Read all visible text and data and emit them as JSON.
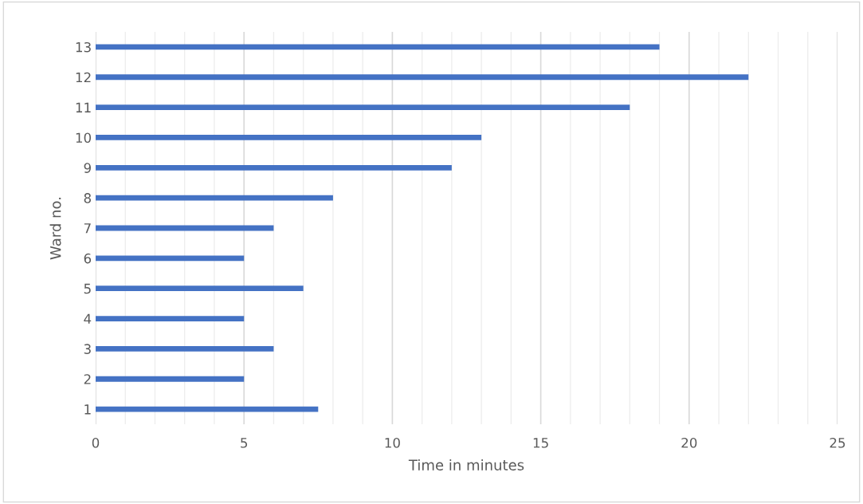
{
  "chart_data": {
    "type": "bar",
    "orientation": "horizontal",
    "xlabel": "Time in minutes",
    "ylabel": "Ward no.",
    "categories": [
      "13",
      "12",
      "11",
      "10",
      "9",
      "8",
      "7",
      "6",
      "5",
      "4",
      "3",
      "2",
      "1"
    ],
    "values": [
      19,
      22,
      18,
      13,
      12,
      8,
      6,
      5,
      7,
      5,
      6,
      5,
      7.5
    ],
    "color": "#4472c4",
    "xlim": [
      0,
      25
    ],
    "xticks": [
      0,
      {
        "value": 1,
        "label": null
      },
      {
        "value": 2,
        "label": null
      },
      {
        "value": 3,
        "label": null
      },
      {
        "value": 4,
        "label": null
      },
      5,
      {
        "value": 6,
        "label": null
      },
      {
        "value": 7,
        "label": null
      },
      {
        "value": 8,
        "label": null
      },
      {
        "value": 9,
        "label": null
      },
      10,
      {
        "value": 11,
        "label": null
      },
      {
        "value": 12,
        "label": null
      },
      {
        "value": 13,
        "label": null
      },
      {
        "value": 14,
        "label": null
      },
      15,
      {
        "value": 16,
        "label": null
      },
      {
        "value": 17,
        "label": null
      },
      {
        "value": 18,
        "label": null
      },
      {
        "value": 19,
        "label": null
      },
      20,
      {
        "value": 21,
        "label": null
      },
      {
        "value": 22,
        "label": null
      },
      {
        "value": 23,
        "label": null
      },
      {
        "value": 24,
        "label": null
      },
      25
    ],
    "grid": "x"
  }
}
